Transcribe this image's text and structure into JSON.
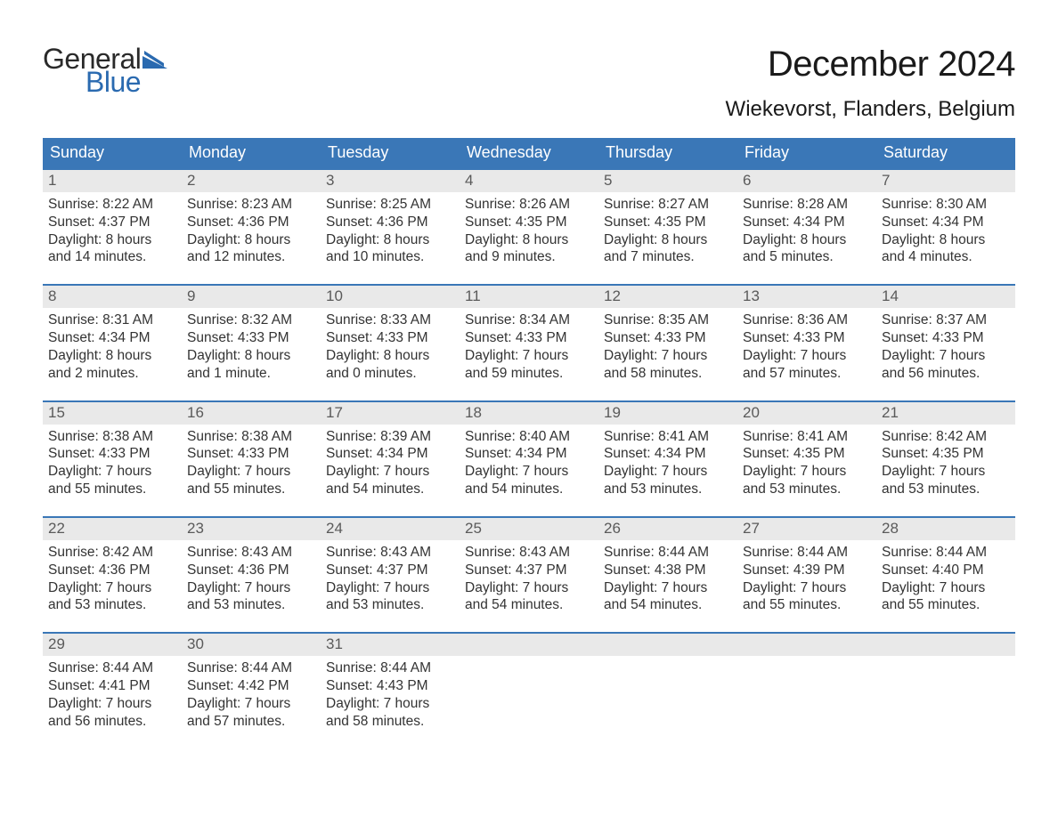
{
  "brand": {
    "word1": "General",
    "word2": "Blue",
    "color_dark": "#2a2a2a",
    "color_blue": "#2a6ab0"
  },
  "title": "December 2024",
  "location": "Wiekevorst, Flanders, Belgium",
  "colors": {
    "header_bg": "#3a77b7",
    "header_text": "#ffffff",
    "week_rule": "#3a77b7",
    "daynum_bg": "#e9e9e9",
    "daynum_text": "#5a5a5a",
    "body_text": "#333333",
    "page_bg": "#ffffff"
  },
  "fonts": {
    "title_size_pt": 30,
    "location_size_pt": 18,
    "dow_size_pt": 14,
    "daynum_size_pt": 13,
    "body_size_pt": 12
  },
  "days_of_week": [
    "Sunday",
    "Monday",
    "Tuesday",
    "Wednesday",
    "Thursday",
    "Friday",
    "Saturday"
  ],
  "weeks": [
    [
      {
        "n": "1",
        "sunrise": "Sunrise: 8:22 AM",
        "sunset": "Sunset: 4:37 PM",
        "dl1": "Daylight: 8 hours",
        "dl2": "and 14 minutes."
      },
      {
        "n": "2",
        "sunrise": "Sunrise: 8:23 AM",
        "sunset": "Sunset: 4:36 PM",
        "dl1": "Daylight: 8 hours",
        "dl2": "and 12 minutes."
      },
      {
        "n": "3",
        "sunrise": "Sunrise: 8:25 AM",
        "sunset": "Sunset: 4:36 PM",
        "dl1": "Daylight: 8 hours",
        "dl2": "and 10 minutes."
      },
      {
        "n": "4",
        "sunrise": "Sunrise: 8:26 AM",
        "sunset": "Sunset: 4:35 PM",
        "dl1": "Daylight: 8 hours",
        "dl2": "and 9 minutes."
      },
      {
        "n": "5",
        "sunrise": "Sunrise: 8:27 AM",
        "sunset": "Sunset: 4:35 PM",
        "dl1": "Daylight: 8 hours",
        "dl2": "and 7 minutes."
      },
      {
        "n": "6",
        "sunrise": "Sunrise: 8:28 AM",
        "sunset": "Sunset: 4:34 PM",
        "dl1": "Daylight: 8 hours",
        "dl2": "and 5 minutes."
      },
      {
        "n": "7",
        "sunrise": "Sunrise: 8:30 AM",
        "sunset": "Sunset: 4:34 PM",
        "dl1": "Daylight: 8 hours",
        "dl2": "and 4 minutes."
      }
    ],
    [
      {
        "n": "8",
        "sunrise": "Sunrise: 8:31 AM",
        "sunset": "Sunset: 4:34 PM",
        "dl1": "Daylight: 8 hours",
        "dl2": "and 2 minutes."
      },
      {
        "n": "9",
        "sunrise": "Sunrise: 8:32 AM",
        "sunset": "Sunset: 4:33 PM",
        "dl1": "Daylight: 8 hours",
        "dl2": "and 1 minute."
      },
      {
        "n": "10",
        "sunrise": "Sunrise: 8:33 AM",
        "sunset": "Sunset: 4:33 PM",
        "dl1": "Daylight: 8 hours",
        "dl2": "and 0 minutes."
      },
      {
        "n": "11",
        "sunrise": "Sunrise: 8:34 AM",
        "sunset": "Sunset: 4:33 PM",
        "dl1": "Daylight: 7 hours",
        "dl2": "and 59 minutes."
      },
      {
        "n": "12",
        "sunrise": "Sunrise: 8:35 AM",
        "sunset": "Sunset: 4:33 PM",
        "dl1": "Daylight: 7 hours",
        "dl2": "and 58 minutes."
      },
      {
        "n": "13",
        "sunrise": "Sunrise: 8:36 AM",
        "sunset": "Sunset: 4:33 PM",
        "dl1": "Daylight: 7 hours",
        "dl2": "and 57 minutes."
      },
      {
        "n": "14",
        "sunrise": "Sunrise: 8:37 AM",
        "sunset": "Sunset: 4:33 PM",
        "dl1": "Daylight: 7 hours",
        "dl2": "and 56 minutes."
      }
    ],
    [
      {
        "n": "15",
        "sunrise": "Sunrise: 8:38 AM",
        "sunset": "Sunset: 4:33 PM",
        "dl1": "Daylight: 7 hours",
        "dl2": "and 55 minutes."
      },
      {
        "n": "16",
        "sunrise": "Sunrise: 8:38 AM",
        "sunset": "Sunset: 4:33 PM",
        "dl1": "Daylight: 7 hours",
        "dl2": "and 55 minutes."
      },
      {
        "n": "17",
        "sunrise": "Sunrise: 8:39 AM",
        "sunset": "Sunset: 4:34 PM",
        "dl1": "Daylight: 7 hours",
        "dl2": "and 54 minutes."
      },
      {
        "n": "18",
        "sunrise": "Sunrise: 8:40 AM",
        "sunset": "Sunset: 4:34 PM",
        "dl1": "Daylight: 7 hours",
        "dl2": "and 54 minutes."
      },
      {
        "n": "19",
        "sunrise": "Sunrise: 8:41 AM",
        "sunset": "Sunset: 4:34 PM",
        "dl1": "Daylight: 7 hours",
        "dl2": "and 53 minutes."
      },
      {
        "n": "20",
        "sunrise": "Sunrise: 8:41 AM",
        "sunset": "Sunset: 4:35 PM",
        "dl1": "Daylight: 7 hours",
        "dl2": "and 53 minutes."
      },
      {
        "n": "21",
        "sunrise": "Sunrise: 8:42 AM",
        "sunset": "Sunset: 4:35 PM",
        "dl1": "Daylight: 7 hours",
        "dl2": "and 53 minutes."
      }
    ],
    [
      {
        "n": "22",
        "sunrise": "Sunrise: 8:42 AM",
        "sunset": "Sunset: 4:36 PM",
        "dl1": "Daylight: 7 hours",
        "dl2": "and 53 minutes."
      },
      {
        "n": "23",
        "sunrise": "Sunrise: 8:43 AM",
        "sunset": "Sunset: 4:36 PM",
        "dl1": "Daylight: 7 hours",
        "dl2": "and 53 minutes."
      },
      {
        "n": "24",
        "sunrise": "Sunrise: 8:43 AM",
        "sunset": "Sunset: 4:37 PM",
        "dl1": "Daylight: 7 hours",
        "dl2": "and 53 minutes."
      },
      {
        "n": "25",
        "sunrise": "Sunrise: 8:43 AM",
        "sunset": "Sunset: 4:37 PM",
        "dl1": "Daylight: 7 hours",
        "dl2": "and 54 minutes."
      },
      {
        "n": "26",
        "sunrise": "Sunrise: 8:44 AM",
        "sunset": "Sunset: 4:38 PM",
        "dl1": "Daylight: 7 hours",
        "dl2": "and 54 minutes."
      },
      {
        "n": "27",
        "sunrise": "Sunrise: 8:44 AM",
        "sunset": "Sunset: 4:39 PM",
        "dl1": "Daylight: 7 hours",
        "dl2": "and 55 minutes."
      },
      {
        "n": "28",
        "sunrise": "Sunrise: 8:44 AM",
        "sunset": "Sunset: 4:40 PM",
        "dl1": "Daylight: 7 hours",
        "dl2": "and 55 minutes."
      }
    ],
    [
      {
        "n": "29",
        "sunrise": "Sunrise: 8:44 AM",
        "sunset": "Sunset: 4:41 PM",
        "dl1": "Daylight: 7 hours",
        "dl2": "and 56 minutes."
      },
      {
        "n": "30",
        "sunrise": "Sunrise: 8:44 AM",
        "sunset": "Sunset: 4:42 PM",
        "dl1": "Daylight: 7 hours",
        "dl2": "and 57 minutes."
      },
      {
        "n": "31",
        "sunrise": "Sunrise: 8:44 AM",
        "sunset": "Sunset: 4:43 PM",
        "dl1": "Daylight: 7 hours",
        "dl2": "and 58 minutes."
      },
      {
        "n": "",
        "sunrise": "",
        "sunset": "",
        "dl1": "",
        "dl2": ""
      },
      {
        "n": "",
        "sunrise": "",
        "sunset": "",
        "dl1": "",
        "dl2": ""
      },
      {
        "n": "",
        "sunrise": "",
        "sunset": "",
        "dl1": "",
        "dl2": ""
      },
      {
        "n": "",
        "sunrise": "",
        "sunset": "",
        "dl1": "",
        "dl2": ""
      }
    ]
  ]
}
